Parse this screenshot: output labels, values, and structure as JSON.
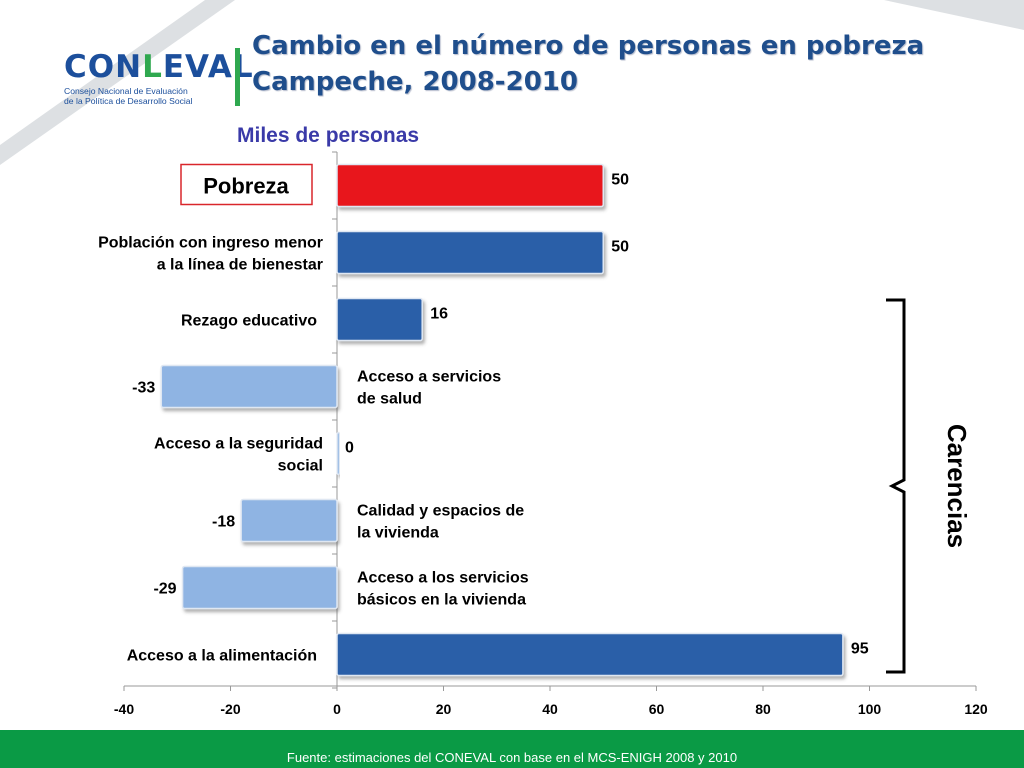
{
  "header": {
    "logo_word_1": "CON",
    "logo_word_2": "EVAL",
    "logo_letter_l": "L",
    "logo_sub_1": "Consejo Nacional de Evaluación",
    "logo_sub_2": "de la Política de Desarrollo Social",
    "title_line_1": "Cambio en el número de personas en pobreza",
    "title_line_2": "Campeche, 2008-2010",
    "subtitle": "Miles de personas"
  },
  "chart_data": {
    "type": "bar",
    "orientation": "horizontal",
    "xlim": [
      -40,
      120
    ],
    "x_ticks": [
      "-40",
      "-20",
      "0",
      "20",
      "40",
      "60",
      "80",
      "100",
      "120"
    ],
    "x_tick_values": [
      -40,
      -20,
      0,
      20,
      40,
      60,
      80,
      100,
      120
    ],
    "bars": [
      {
        "label": [
          "Pobreza"
        ],
        "value": 50,
        "value_label": "50",
        "color": "#e8131a",
        "boxed": true
      },
      {
        "label": [
          "Población con ingreso menor",
          "a la línea de bienestar"
        ],
        "value": 50,
        "value_label": "50",
        "color": "#2b5ea8"
      },
      {
        "label": [
          "Rezago educativo"
        ],
        "value": 16,
        "value_label": "16",
        "color": "#2b5ea8"
      },
      {
        "label": [
          "Acceso a servicios",
          " de salud"
        ],
        "value": -33,
        "value_label": "-33",
        "color": "#8fb4e3"
      },
      {
        "label": [
          "Acceso a  la seguridad",
          "social"
        ],
        "value": 0,
        "value_label": "0",
        "color": "#8fb4e3"
      },
      {
        "label": [
          "Calidad y espacios de",
          "la vivienda"
        ],
        "value": -18,
        "value_label": "-18",
        "color": "#8fb4e3"
      },
      {
        "label": [
          "Acceso a los servicios",
          "básicos en la vivienda"
        ],
        "value": -29,
        "value_label": "-29",
        "color": "#8fb4e3"
      },
      {
        "label": [
          "Acceso a la alimentación"
        ],
        "value": 95,
        "value_label": "95",
        "color": "#2b5ea8"
      }
    ],
    "bracket_label": "Carencias"
  },
  "footer": {
    "source": "Fuente: estimaciones del CONEVAL con base en el MCS-ENIGH 2008 y 2010",
    "color": "#0a9a45"
  }
}
